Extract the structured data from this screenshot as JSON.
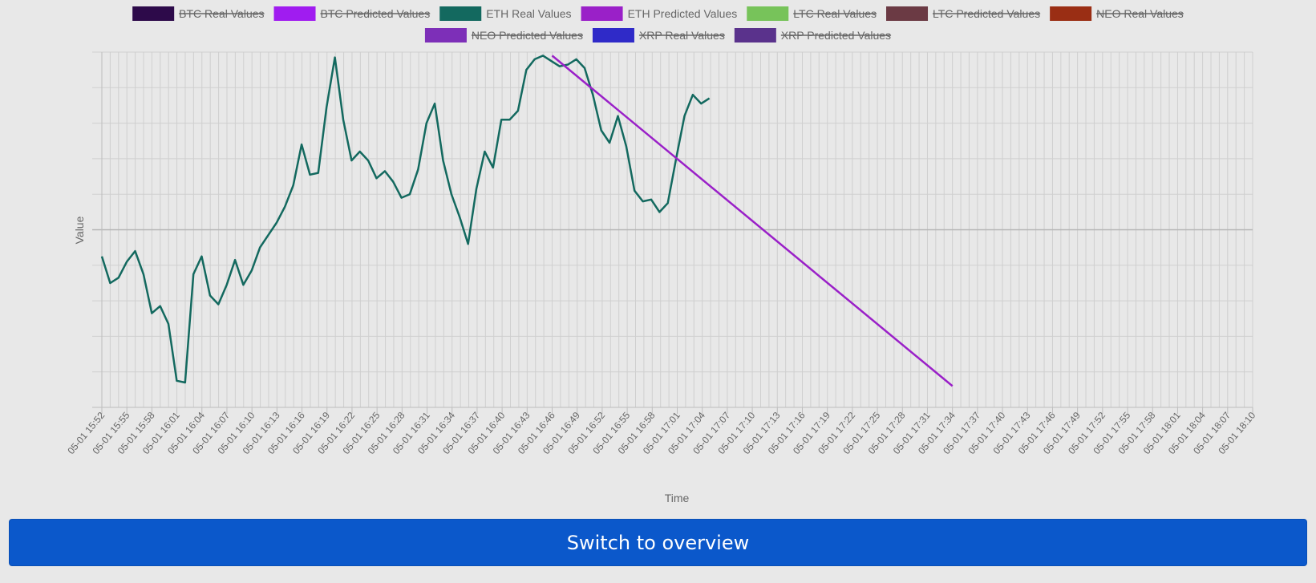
{
  "chart_data": {
    "type": "line",
    "xlabel": "Time",
    "ylabel": "Value",
    "x_ticks": [
      "05-01 15:52",
      "05-01 15:55",
      "05-01 15:58",
      "05-01 16:01",
      "05-01 16:04",
      "05-01 16:07",
      "05-01 16:10",
      "05-01 16:13",
      "05-01 16:16",
      "05-01 16:19",
      "05-01 16:22",
      "05-01 16:25",
      "05-01 16:28",
      "05-01 16:31",
      "05-01 16:34",
      "05-01 16:37",
      "05-01 16:40",
      "05-01 16:43",
      "05-01 16:46",
      "05-01 16:49",
      "05-01 16:52",
      "05-01 16:55",
      "05-01 16:58",
      "05-01 17:01",
      "05-01 17:04",
      "05-01 17:07",
      "05-01 17:10",
      "05-01 17:13",
      "05-01 17:16",
      "05-01 17:19",
      "05-01 17:22",
      "05-01 17:25",
      "05-01 17:28",
      "05-01 17:31",
      "05-01 17:34",
      "05-01 17:37",
      "05-01 17:40",
      "05-01 17:43",
      "05-01 17:46",
      "05-01 17:49",
      "05-01 17:52",
      "05-01 17:55",
      "05-01 17:58",
      "05-01 18:01",
      "05-01 18:04",
      "05-01 18:07",
      "05-01 18:10"
    ],
    "y_ticks_shown": false,
    "grid": true,
    "legend_position": "top",
    "series": [
      {
        "name": "BTC Real Values",
        "color": "#2d0a4a",
        "hidden": true,
        "values": []
      },
      {
        "name": "BTC Predicted Values",
        "color": "#a01cf0",
        "hidden": true,
        "values": []
      },
      {
        "name": "ETH Real Values",
        "color": "#13695f",
        "hidden": false,
        "values": [
          -0.15,
          -0.3,
          -0.27,
          -0.18,
          -0.12,
          -0.25,
          -0.47,
          -0.43,
          -0.53,
          -0.85,
          -0.86,
          -0.25,
          -0.15,
          -0.37,
          -0.42,
          -0.31,
          -0.17,
          -0.31,
          -0.23,
          -0.1,
          -0.03,
          0.04,
          0.13,
          0.25,
          0.48,
          0.31,
          0.32,
          0.69,
          0.97,
          0.62,
          0.39,
          0.44,
          0.39,
          0.29,
          0.33,
          0.27,
          0.18,
          0.2,
          0.34,
          0.6,
          0.71,
          0.39,
          0.2,
          0.07,
          -0.08,
          0.23,
          0.44,
          0.35,
          0.62,
          0.62,
          0.67,
          0.9,
          0.96,
          0.98,
          0.95,
          0.92,
          0.93,
          0.96,
          0.91,
          0.76,
          0.56,
          0.49,
          0.64,
          0.47,
          0.22,
          0.16,
          0.17,
          0.1,
          0.15,
          0.4,
          0.64,
          0.76,
          0.71,
          0.74
        ]
      },
      {
        "name": "ETH Predicted Values",
        "color": "#9a20c8",
        "hidden": false,
        "x": [
          "05-01 16:46",
          "05-01 17:34"
        ],
        "values": [
          0.98,
          -0.88
        ]
      },
      {
        "name": "LTC Real Values",
        "color": "#77c35a",
        "hidden": true,
        "values": []
      },
      {
        "name": "LTC Predicted Values",
        "color": "#6b3a44",
        "hidden": true,
        "values": []
      },
      {
        "name": "NEO Real Values",
        "color": "#9a2e14",
        "hidden": true,
        "values": []
      },
      {
        "name": "NEO Predicted Values",
        "color": "#7d2fb8",
        "hidden": true,
        "values": []
      },
      {
        "name": "XRP Real Values",
        "color": "#2f2ac8",
        "hidden": true,
        "values": []
      },
      {
        "name": "XRP Predicted Values",
        "color": "#5a328c",
        "hidden": true,
        "values": []
      }
    ],
    "ylim": [
      -1,
      1
    ]
  },
  "button": {
    "label": "Switch to overview",
    "color": "#0b58cb"
  }
}
